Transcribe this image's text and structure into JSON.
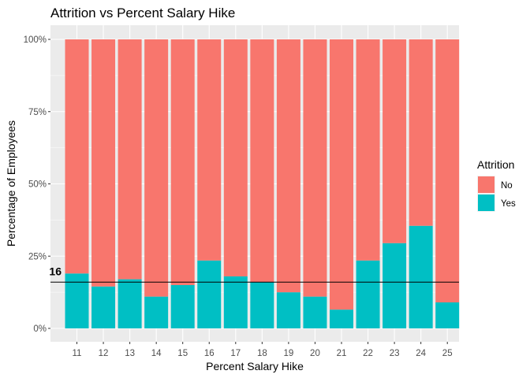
{
  "chart_data": {
    "type": "bar",
    "stacked": "percent",
    "title": "Attrition vs Percent Salary Hike",
    "xlabel": "Percent Salary Hike",
    "ylabel": "Percentage of Employees",
    "categories": [
      "11",
      "12",
      "13",
      "14",
      "15",
      "16",
      "17",
      "18",
      "19",
      "20",
      "21",
      "22",
      "23",
      "24",
      "25"
    ],
    "series": [
      {
        "name": "No",
        "color": "#F8766D",
        "values": [
          81,
          85.5,
          83,
          89,
          85,
          76.5,
          82,
          84,
          87.5,
          89,
          93.5,
          76.5,
          70.5,
          64.5,
          91
        ]
      },
      {
        "name": "Yes",
        "color": "#00BFC4",
        "values": [
          19,
          14.5,
          17,
          11,
          15,
          23.5,
          18,
          16,
          12.5,
          11,
          6.5,
          23.5,
          29.5,
          35.5,
          9
        ]
      }
    ],
    "ylim": [
      0,
      100
    ],
    "yticks": [
      "0%",
      "25%",
      "50%",
      "75%",
      "100%"
    ],
    "reference_line": {
      "y": 16,
      "label": "16"
    },
    "legend": {
      "title": "Attrition",
      "position": "right",
      "items": [
        "No",
        "Yes"
      ]
    },
    "grid": true
  }
}
